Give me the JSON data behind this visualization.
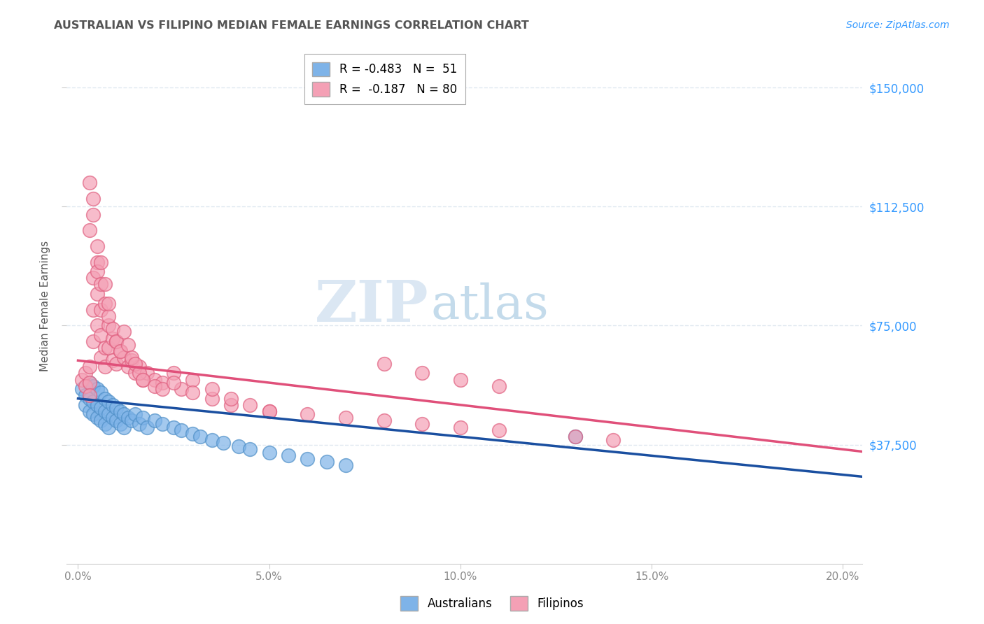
{
  "title": "AUSTRALIAN VS FILIPINO MEDIAN FEMALE EARNINGS CORRELATION CHART",
  "source": "Source: ZipAtlas.com",
  "ylabel": "Median Female Earnings",
  "xlabel_ticks": [
    "0.0%",
    "5.0%",
    "10.0%",
    "15.0%",
    "20.0%"
  ],
  "xlabel_vals": [
    0.0,
    0.05,
    0.1,
    0.15,
    0.2
  ],
  "ytick_labels": [
    "$37,500",
    "$75,000",
    "$112,500",
    "$150,000"
  ],
  "ytick_vals": [
    37500,
    75000,
    112500,
    150000
  ],
  "ylim": [
    0,
    162500
  ],
  "xlim": [
    -0.003,
    0.205
  ],
  "legend_entries": [
    {
      "label": "R = -0.483   N =  51",
      "color": "#7eb3e8"
    },
    {
      "label": "R =  -0.187   N = 80",
      "color": "#f4a0b5"
    }
  ],
  "legend_labels": [
    "Australians",
    "Filipinos"
  ],
  "watermark_zip": "ZIP",
  "watermark_atlas": "atlas",
  "title_color": "#555555",
  "source_color": "#3399ff",
  "ytick_color": "#3399ff",
  "aus_color": "#7eb3e8",
  "fil_color": "#f4a0b5",
  "aus_edge": "#5090c8",
  "fil_edge": "#e06080",
  "aus_line_color": "#1a4fa0",
  "fil_line_color": "#e0507a",
  "background_color": "#ffffff",
  "grid_color": "#e0e8f0",
  "aus_intercept": 52000,
  "aus_slope": -120000,
  "fil_intercept": 64000,
  "fil_slope": -140000,
  "aus_points_x": [
    0.001,
    0.002,
    0.002,
    0.003,
    0.003,
    0.003,
    0.004,
    0.004,
    0.004,
    0.005,
    0.005,
    0.005,
    0.006,
    0.006,
    0.006,
    0.007,
    0.007,
    0.007,
    0.008,
    0.008,
    0.008,
    0.009,
    0.009,
    0.01,
    0.01,
    0.011,
    0.011,
    0.012,
    0.012,
    0.013,
    0.014,
    0.015,
    0.016,
    0.017,
    0.018,
    0.02,
    0.022,
    0.025,
    0.027,
    0.03,
    0.032,
    0.035,
    0.038,
    0.042,
    0.045,
    0.05,
    0.055,
    0.06,
    0.065,
    0.07,
    0.13
  ],
  "aus_points_y": [
    55000,
    53000,
    50000,
    57000,
    52000,
    48000,
    56000,
    51000,
    47000,
    55000,
    50000,
    46000,
    54000,
    49000,
    45000,
    52000,
    48000,
    44000,
    51000,
    47000,
    43000,
    50000,
    46000,
    49000,
    45000,
    48000,
    44000,
    47000,
    43000,
    46000,
    45000,
    47000,
    44000,
    46000,
    43000,
    45000,
    44000,
    43000,
    42000,
    41000,
    40000,
    39000,
    38000,
    37000,
    36000,
    35000,
    34000,
    33000,
    32000,
    31000,
    40000
  ],
  "fil_points_x": [
    0.001,
    0.002,
    0.002,
    0.003,
    0.003,
    0.003,
    0.004,
    0.004,
    0.004,
    0.005,
    0.005,
    0.005,
    0.006,
    0.006,
    0.006,
    0.007,
    0.007,
    0.008,
    0.008,
    0.009,
    0.009,
    0.01,
    0.01,
    0.011,
    0.012,
    0.013,
    0.014,
    0.015,
    0.016,
    0.017,
    0.018,
    0.02,
    0.022,
    0.025,
    0.027,
    0.03,
    0.003,
    0.004,
    0.005,
    0.006,
    0.007,
    0.008,
    0.009,
    0.01,
    0.011,
    0.012,
    0.013,
    0.014,
    0.015,
    0.016,
    0.017,
    0.02,
    0.022,
    0.025,
    0.03,
    0.035,
    0.04,
    0.05,
    0.06,
    0.07,
    0.08,
    0.09,
    0.1,
    0.11,
    0.13,
    0.14,
    0.08,
    0.09,
    0.1,
    0.11,
    0.003,
    0.004,
    0.005,
    0.006,
    0.007,
    0.008,
    0.035,
    0.04,
    0.045,
    0.05
  ],
  "fil_points_y": [
    58000,
    60000,
    56000,
    62000,
    57000,
    53000,
    70000,
    80000,
    90000,
    95000,
    85000,
    75000,
    80000,
    72000,
    65000,
    68000,
    62000,
    75000,
    68000,
    71000,
    64000,
    70000,
    63000,
    67000,
    65000,
    62000,
    64000,
    60000,
    62000,
    58000,
    60000,
    58000,
    57000,
    60000,
    55000,
    58000,
    105000,
    110000,
    92000,
    88000,
    82000,
    78000,
    74000,
    70000,
    67000,
    73000,
    69000,
    65000,
    63000,
    60000,
    58000,
    56000,
    55000,
    57000,
    54000,
    52000,
    50000,
    48000,
    47000,
    46000,
    45000,
    44000,
    43000,
    42000,
    40000,
    39000,
    63000,
    60000,
    58000,
    56000,
    120000,
    115000,
    100000,
    95000,
    88000,
    82000,
    55000,
    52000,
    50000,
    48000
  ]
}
